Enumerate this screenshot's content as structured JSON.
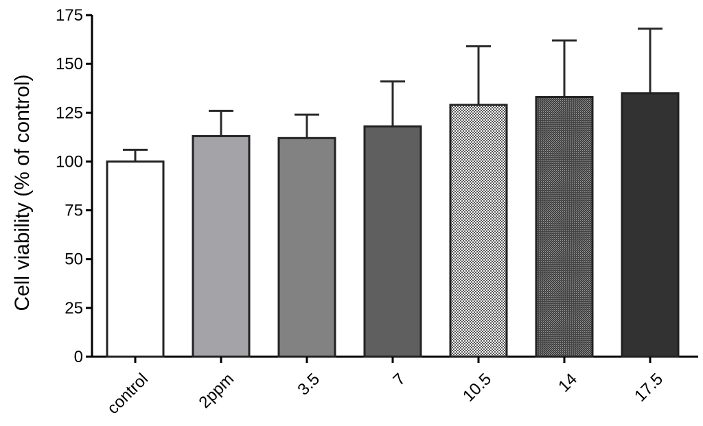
{
  "chart_data": {
    "type": "bar",
    "title": "",
    "xlabel": "",
    "ylabel": "Cell viability (% of control)",
    "ylim": [
      0,
      175
    ],
    "yticks": [
      0,
      25,
      50,
      75,
      100,
      125,
      150,
      175
    ],
    "categories": [
      "control",
      "2ppm",
      "3.5",
      "7",
      "10.5",
      "14",
      "17.5"
    ],
    "values": [
      100,
      113,
      112,
      118,
      129,
      133,
      135
    ],
    "error_upper": [
      6,
      13,
      12,
      23,
      30,
      29,
      33
    ],
    "bar_fills": [
      {
        "type": "solid",
        "color": "#ffffff"
      },
      {
        "type": "solid",
        "color": "#a4a3a8"
      },
      {
        "type": "solid",
        "color": "#828282"
      },
      {
        "type": "solid",
        "color": "#5f5f5f"
      },
      {
        "type": "pattern",
        "color": "#5a5a5a",
        "background": "#ffffff",
        "density": "sparse"
      },
      {
        "type": "pattern",
        "color": "#454545",
        "background": "#9a9a9a",
        "density": "dense"
      },
      {
        "type": "solid",
        "color": "#323232"
      }
    ],
    "outline_color": "#222222",
    "grid": false,
    "legend": "none"
  }
}
